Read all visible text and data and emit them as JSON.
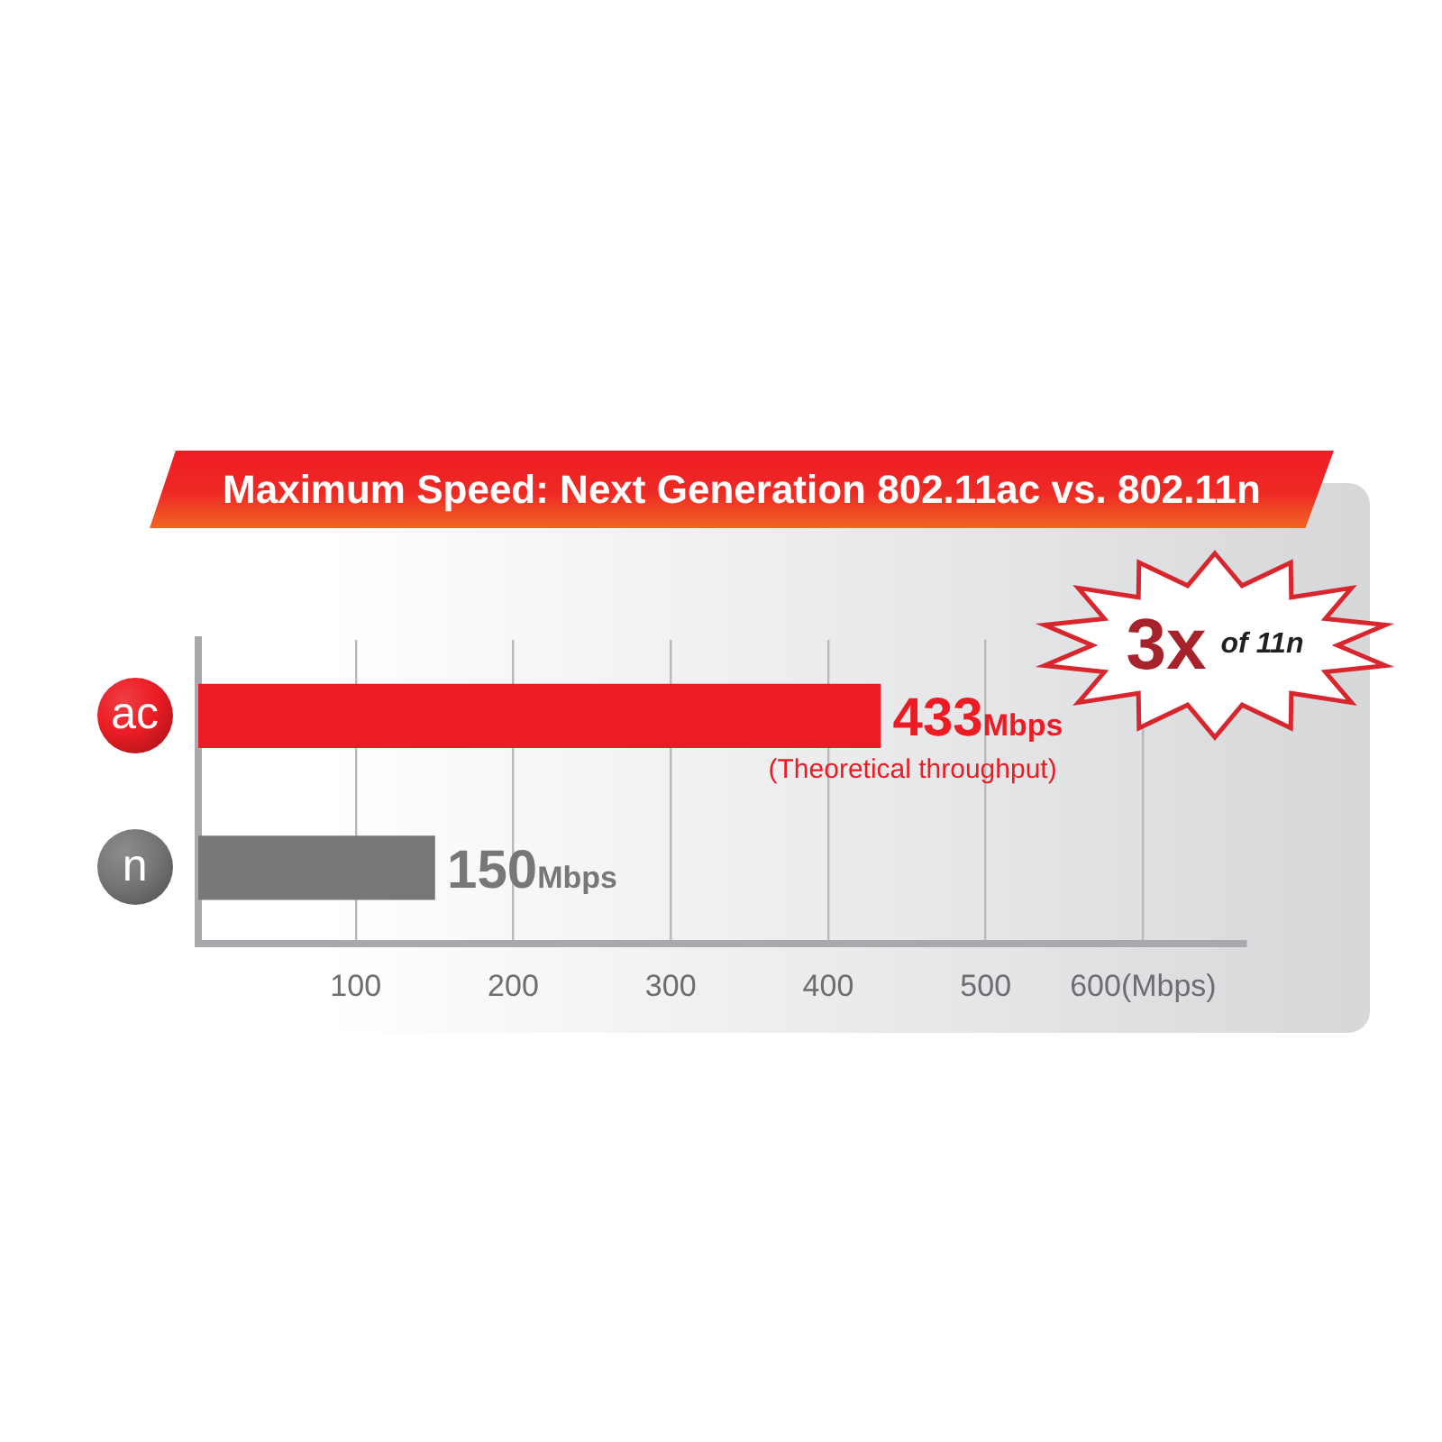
{
  "chart_data": {
    "type": "bar",
    "orientation": "horizontal",
    "title": "Maximum Speed: Next Generation 802.11ac vs. 802.11n",
    "categories": [
      "ac",
      "n"
    ],
    "values": [
      433,
      150
    ],
    "colors": [
      "#ec1c24",
      "#77777a"
    ],
    "value_labels": [
      "433Mbps",
      "150Mbps"
    ],
    "xlim": [
      0,
      665
    ],
    "xticks": [
      100,
      200,
      300,
      400,
      500,
      {
        "value": 600,
        "label": "600(Mbps)"
      }
    ],
    "grid": "x",
    "annotations": [
      {
        "text": "(Theoretical throughput)",
        "x": 433,
        "y": "ac"
      },
      "3x of 11n"
    ]
  }
}
